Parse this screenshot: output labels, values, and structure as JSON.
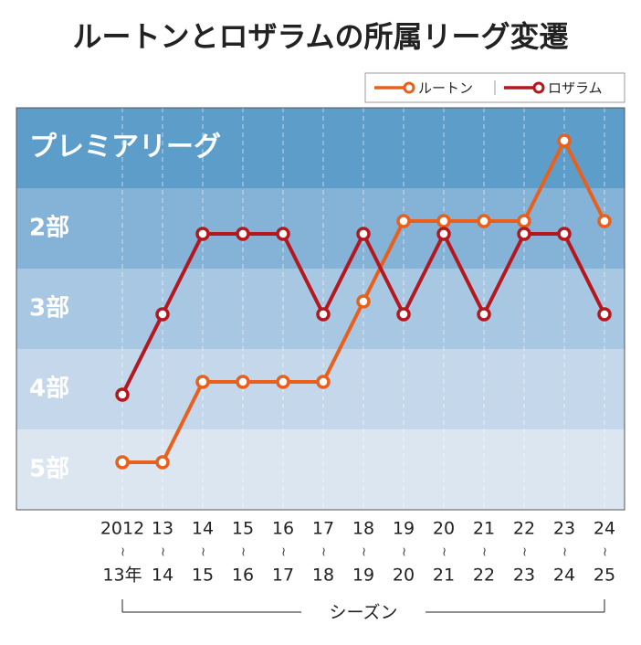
{
  "chart_data": {
    "type": "line",
    "title": "ルートンとロザラムの所属リーグ変遷",
    "categories": [
      {
        "from": "2012",
        "to": "13年"
      },
      {
        "from": "13",
        "to": "14"
      },
      {
        "from": "14",
        "to": "15"
      },
      {
        "from": "15",
        "to": "16"
      },
      {
        "from": "16",
        "to": "17"
      },
      {
        "from": "17",
        "to": "18"
      },
      {
        "from": "18",
        "to": "19"
      },
      {
        "from": "19",
        "to": "20"
      },
      {
        "from": "20",
        "to": "21"
      },
      {
        "from": "21",
        "to": "22"
      },
      {
        "from": "22",
        "to": "23"
      },
      {
        "from": "23",
        "to": "24"
      },
      {
        "from": "24",
        "to": "25"
      }
    ],
    "x_label": "シーズン",
    "series": [
      {
        "name": "ルートン",
        "color": "#e8601c",
        "values": [
          5,
          5,
          4,
          4,
          4,
          4,
          3,
          2,
          2,
          2,
          2,
          1,
          2
        ]
      },
      {
        "name": "ロザラム",
        "color": "#b5171e",
        "values": [
          4,
          3,
          2,
          2,
          2,
          3,
          2,
          3,
          2,
          3,
          2,
          2,
          3
        ]
      }
    ],
    "ylim": [
      0.5,
      5.5
    ],
    "yticks": [
      {
        "value": 1,
        "label": "プレミアリーグ"
      },
      {
        "value": 2,
        "label": "2部"
      },
      {
        "value": 3,
        "label": "3部"
      },
      {
        "value": 4,
        "label": "4部"
      },
      {
        "value": 5,
        "label": "5部"
      }
    ],
    "band_colors": [
      "#5c9dca",
      "#85b3d8",
      "#a8c7e2",
      "#c5d7ea",
      "#dce6f1"
    ],
    "grid": true,
    "legend": "top-right"
  }
}
